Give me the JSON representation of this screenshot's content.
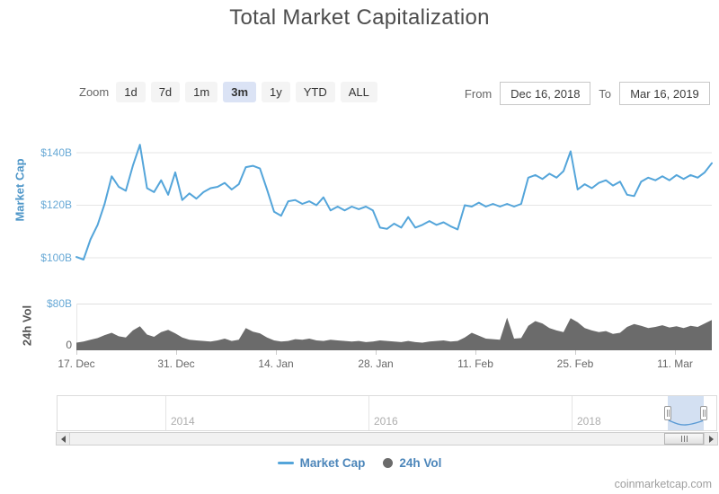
{
  "title": "Total Market Capitalization",
  "watermark": "coinmarketcap.com",
  "toolbar": {
    "zoom_label": "Zoom",
    "zoom_buttons": [
      "1d",
      "7d",
      "1m",
      "3m",
      "1y",
      "YTD",
      "ALL"
    ],
    "zoom_selected": "3m",
    "from_label": "From",
    "from_value": "Dec 16, 2018",
    "to_label": "To",
    "to_value": "Mar 16, 2019"
  },
  "navigator": {
    "years": [
      "2014",
      "2016",
      "2018"
    ]
  },
  "chart_data": {
    "type": "line",
    "title": "Total Market Capitalization",
    "x_ticks": [
      "17. Dec",
      "31. Dec",
      "14. Jan",
      "28. Jan",
      "11. Feb",
      "25. Feb",
      "11. Mar"
    ],
    "x_range": [
      "Dec 16, 2018",
      "Mar 16, 2019"
    ],
    "grid": true,
    "legend_position": "bottom",
    "dates": [
      "Dec 16",
      "Dec 17",
      "Dec 18",
      "Dec 19",
      "Dec 20",
      "Dec 21",
      "Dec 22",
      "Dec 23",
      "Dec 24",
      "Dec 25",
      "Dec 26",
      "Dec 27",
      "Dec 28",
      "Dec 29",
      "Dec 30",
      "Dec 31",
      "Jan 1",
      "Jan 2",
      "Jan 3",
      "Jan 4",
      "Jan 5",
      "Jan 6",
      "Jan 7",
      "Jan 8",
      "Jan 9",
      "Jan 10",
      "Jan 11",
      "Jan 12",
      "Jan 13",
      "Jan 14",
      "Jan 15",
      "Jan 16",
      "Jan 17",
      "Jan 18",
      "Jan 19",
      "Jan 20",
      "Jan 21",
      "Jan 22",
      "Jan 23",
      "Jan 24",
      "Jan 25",
      "Jan 26",
      "Jan 27",
      "Jan 28",
      "Jan 29",
      "Jan 30",
      "Jan 31",
      "Feb 1",
      "Feb 2",
      "Feb 3",
      "Feb 4",
      "Feb 5",
      "Feb 6",
      "Feb 7",
      "Feb 8",
      "Feb 9",
      "Feb 10",
      "Feb 11",
      "Feb 12",
      "Feb 13",
      "Feb 14",
      "Feb 15",
      "Feb 16",
      "Feb 17",
      "Feb 18",
      "Feb 19",
      "Feb 20",
      "Feb 21",
      "Feb 22",
      "Feb 23",
      "Feb 24",
      "Feb 25",
      "Feb 26",
      "Feb 27",
      "Feb 28",
      "Mar 1",
      "Mar 2",
      "Mar 3",
      "Mar 4",
      "Mar 5",
      "Mar 6",
      "Mar 7",
      "Mar 8",
      "Mar 9",
      "Mar 10",
      "Mar 11",
      "Mar 12",
      "Mar 13",
      "Mar 14",
      "Mar 15",
      "Mar 16"
    ],
    "series": [
      {
        "name": "Market Cap",
        "type": "line",
        "color": "#54a5da",
        "unit": "USD billions",
        "axis": {
          "ticks_shown": [
            "$140B",
            "$120B",
            "$100B"
          ],
          "range_billions": [
            96,
            149
          ]
        },
        "values": [
          100.3,
          99.3,
          107,
          112.5,
          120.5,
          131,
          127,
          125.5,
          135,
          143,
          126.5,
          125,
          129.5,
          124,
          132.5,
          122,
          124.5,
          122.5,
          125,
          126.5,
          127,
          128.5,
          126,
          128,
          134.5,
          135,
          134,
          126,
          117.5,
          116,
          121.5,
          122,
          120.5,
          121.5,
          120,
          123,
          118,
          119.5,
          118,
          119.5,
          118.5,
          119.5,
          118,
          111.5,
          111,
          113,
          111.5,
          115.5,
          111.5,
          112.5,
          114,
          112.5,
          113.5,
          112,
          110.8,
          120,
          119.5,
          121,
          119.5,
          120.5,
          119.5,
          120.5,
          119.5,
          120.5,
          130.5,
          131.5,
          130,
          132,
          130.5,
          133,
          140.5,
          126,
          128,
          126.5,
          128.5,
          129.5,
          127.5,
          129,
          124,
          123.5,
          129,
          130.5,
          129.5,
          131,
          129.5,
          131.5,
          130,
          131.5,
          130.5,
          132.5,
          136
        ]
      },
      {
        "name": "24h Vol",
        "type": "area",
        "color": "#6b6b6b",
        "unit": "USD billions",
        "axis": {
          "ticks_shown": [
            "$80B",
            "0"
          ],
          "range_billions": [
            0,
            80
          ]
        },
        "values": [
          13,
          15,
          18,
          21,
          26,
          30,
          24,
          22,
          34,
          41,
          27,
          23,
          31,
          35,
          29,
          22,
          18,
          17,
          16,
          15,
          17,
          20,
          16,
          18,
          38,
          32,
          29,
          22,
          17,
          15,
          16,
          19,
          18,
          20,
          17,
          16,
          18,
          17,
          16,
          15,
          16,
          14,
          15,
          17,
          16,
          15,
          14,
          16,
          14,
          13,
          15,
          16,
          17,
          15,
          16,
          22,
          30,
          25,
          20,
          19,
          18,
          56,
          20,
          21,
          42,
          50,
          46,
          38,
          34,
          31,
          55,
          48,
          38,
          34,
          31,
          33,
          28,
          30,
          40,
          45,
          42,
          38,
          40,
          43,
          39,
          41,
          38,
          42,
          40,
          46,
          52
        ]
      }
    ]
  }
}
